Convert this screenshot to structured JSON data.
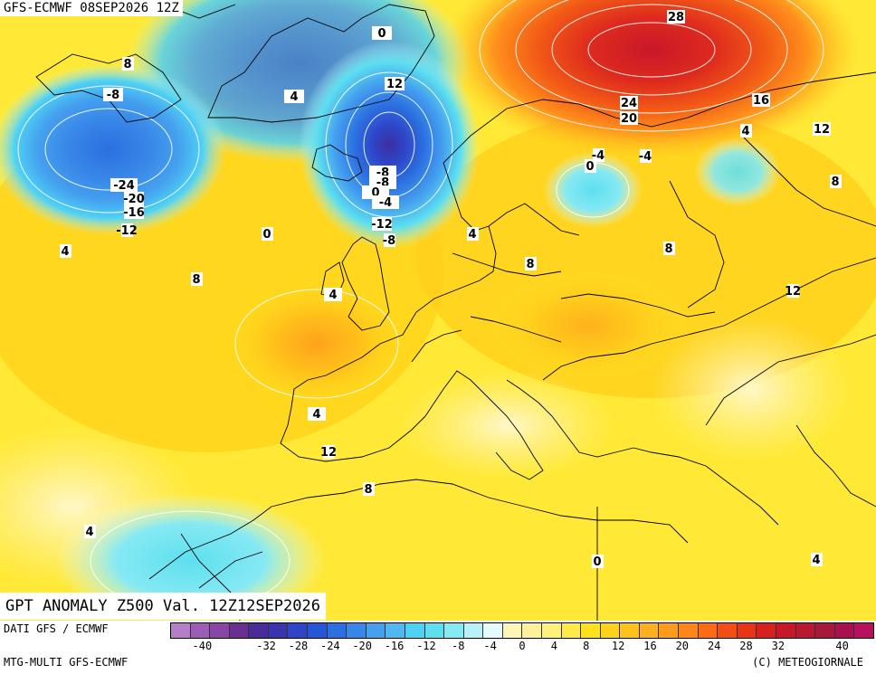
{
  "header": {
    "title": "GFS-ECMWF 08SEP2026 12Z"
  },
  "map": {
    "subtitle": "GPT ANOMALY Z500 Val. 12Z12SEP2026",
    "contour_labels": [
      "28",
      "24",
      "20",
      "16",
      "12",
      "4",
      "8",
      "0",
      "4",
      "12",
      "8",
      "-8",
      "-8",
      "-8",
      "0",
      "-4",
      "-24",
      "-20",
      "-16",
      "-12",
      "-12",
      "-8",
      "-4",
      "0",
      "-4",
      "0",
      "4",
      "4",
      "8",
      "8",
      "8",
      "4",
      "12",
      "4",
      "12",
      "8",
      "4",
      "0",
      "4",
      "4"
    ]
  },
  "footer": {
    "data_source": "DATI GFS / ECMWF",
    "model": "MTG-MULTI GFS-ECMWF",
    "copyright": "(C) METEOGIORNALE"
  },
  "colorbar": {
    "colors": [
      "#b57ec8",
      "#9d5cb5",
      "#8a46a6",
      "#6a2f93",
      "#4a2b9a",
      "#3a34b0",
      "#2f45c8",
      "#2556d8",
      "#2b6fe0",
      "#3887e8",
      "#45a0ef",
      "#4fb8f3",
      "#4fd1f5",
      "#5ddfef",
      "#86e9f3",
      "#b6f2f7",
      "#e4fbfb",
      "#fff5b8",
      "#fff19a",
      "#fff07a",
      "#ffea4a",
      "#ffe21c",
      "#ffd21a",
      "#ffc21a",
      "#ffb01c",
      "#ff9a1c",
      "#ff861a",
      "#ff6a14",
      "#f44e14",
      "#e93416",
      "#d8201e",
      "#c81828",
      "#b81830",
      "#a8183a",
      "#a81050",
      "#b8105f"
    ],
    "ticks": [
      "-40",
      "-32",
      "-28",
      "-24",
      "-20",
      "-16",
      "-12",
      "-8",
      "-4",
      "0",
      "4",
      "8",
      "12",
      "16",
      "20",
      "24",
      "28",
      "32",
      "40"
    ]
  },
  "colors": {
    "warm_core": "#c8182a",
    "cold_core": "#3a2fa0",
    "background_yellow": "#ffe936",
    "land_outline": "#000000",
    "contour": "#ffffff"
  }
}
